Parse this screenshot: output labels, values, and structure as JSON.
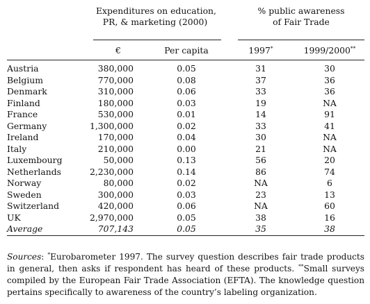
{
  "headers": {
    "group1_line1": "Expenditures on education,",
    "group1_line2": "PR, & marketing (2000)",
    "group2_line1": "% public awareness",
    "group2_line2": "of Fair Trade",
    "col_euro": "€",
    "col_per_capita": "Per capita",
    "col_1997": "1997",
    "col_1997_mark": "*",
    "col_1999": "1999/2000",
    "col_1999_mark": "**"
  },
  "rows": [
    {
      "country": "Austria",
      "euro": "380,000",
      "per_capita": "0.05",
      "y1997": "31",
      "y1999": "30"
    },
    {
      "country": "Belgium",
      "euro": "770,000",
      "per_capita": "0.08",
      "y1997": "37",
      "y1999": "36"
    },
    {
      "country": "Denmark",
      "euro": "310,000",
      "per_capita": "0.06",
      "y1997": "33",
      "y1999": "36"
    },
    {
      "country": "Finland",
      "euro": "180,000",
      "per_capita": "0.03",
      "y1997": "19",
      "y1999": "NA"
    },
    {
      "country": "France",
      "euro": "530,000",
      "per_capita": "0.01",
      "y1997": "14",
      "y1999": "91"
    },
    {
      "country": "Germany",
      "euro": "1,300,000",
      "per_capita": "0.02",
      "y1997": "33",
      "y1999": "41"
    },
    {
      "country": "Ireland",
      "euro": "170,000",
      "per_capita": "0.04",
      "y1997": "30",
      "y1999": "NA"
    },
    {
      "country": "Italy",
      "euro": "210,000",
      "per_capita": "0.00",
      "y1997": "21",
      "y1999": "NA"
    },
    {
      "country": "Luxembourg",
      "euro": "50,000",
      "per_capita": "0.13",
      "y1997": "56",
      "y1999": "20"
    },
    {
      "country": "Netherlands",
      "euro": "2,230,000",
      "per_capita": "0.14",
      "y1997": "86",
      "y1999": "74"
    },
    {
      "country": "Norway",
      "euro": "80,000",
      "per_capita": "0.02",
      "y1997": "NA",
      "y1999": "6"
    },
    {
      "country": "Sweden",
      "euro": "300,000",
      "per_capita": "0.03",
      "y1997": "23",
      "y1999": "13"
    },
    {
      "country": "Switzerland",
      "euro": "420,000",
      "per_capita": "0.06",
      "y1997": "NA",
      "y1999": "60"
    },
    {
      "country": "UK",
      "euro": "2,970,000",
      "per_capita": "0.05",
      "y1997": "38",
      "y1999": "16"
    },
    {
      "country": "Average",
      "euro": "707,143",
      "per_capita": "0.05",
      "y1997": "35",
      "y1999": "38",
      "italic": true
    }
  ],
  "footnote": {
    "label": "Sources",
    "colon": ":",
    "mark1": "*",
    "text1": "Eurobarometer 1997. The survey question describes fair trade products in general, then asks if respondent has heard of these products.",
    "mark2": "**",
    "text2": "Small surveys compiled by the European Fair Trade Association (EFTA). The knowledge question pertains specifically to awareness of the country’s labeling organization."
  }
}
